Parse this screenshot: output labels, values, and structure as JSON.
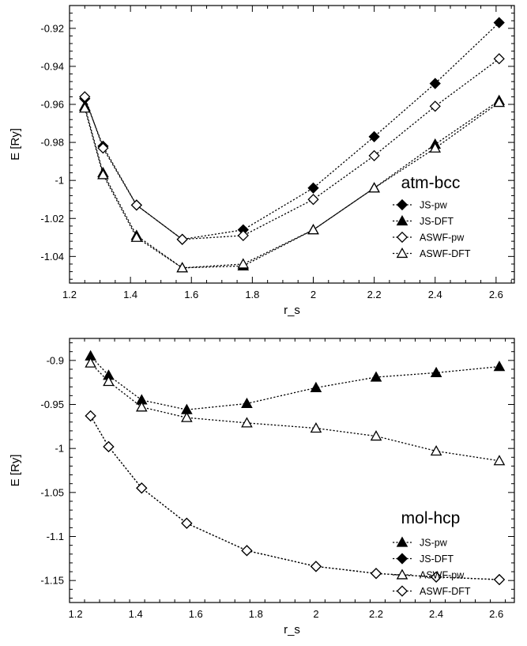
{
  "chart_data": [
    {
      "type": "line",
      "title": "atm-bcc",
      "xlabel": "r_s",
      "ylabel": "E [Ry]",
      "xlim": [
        1.2,
        2.66
      ],
      "ylim": [
        -1.054,
        -0.908
      ],
      "xticks": [
        1.2,
        1.4,
        1.6,
        1.8,
        2,
        2.2,
        2.4,
        2.6
      ],
      "xtick_labels": [
        "1.2",
        "1.4",
        "1.6",
        "1.8",
        "2",
        "2.2",
        "2.4",
        "2.6"
      ],
      "yticks": [
        -0.92,
        -0.94,
        -0.96,
        -0.98,
        -1,
        -1.02,
        -1.04
      ],
      "ytick_labels": [
        "-0.92",
        "-0.94",
        "-0.96",
        "-0.98",
        "-1",
        "-1.02",
        "-1.04"
      ],
      "legend_position": "bottom-right",
      "grid": false,
      "x": [
        1.25,
        1.31,
        1.42,
        1.57,
        1.77,
        2.0,
        2.2,
        2.4,
        2.61
      ],
      "series": [
        {
          "name": "JS-pw",
          "marker": "diamond-filled",
          "values": [
            -0.957,
            -0.982,
            -1.013,
            -1.031,
            -1.026,
            -1.004,
            -0.977,
            -0.949,
            -0.917
          ]
        },
        {
          "name": "JS-DFT",
          "marker": "triangle-filled",
          "values": [
            -0.961,
            -0.996,
            -1.029,
            -1.046,
            -1.045,
            -1.026,
            -1.004,
            -0.981,
            -0.958
          ]
        },
        {
          "name": "ASWF-pw",
          "marker": "diamond-open",
          "values": [
            -0.956,
            -0.983,
            -1.013,
            -1.031,
            -1.029,
            -1.01,
            -0.987,
            -0.961,
            -0.936
          ]
        },
        {
          "name": "ASWF-DFT",
          "marker": "triangle-open",
          "values": [
            -0.962,
            -0.997,
            -1.03,
            -1.046,
            -1.044,
            -1.026,
            -1.004,
            -0.983,
            -0.959
          ]
        }
      ]
    },
    {
      "type": "line",
      "title": "mol-hcp",
      "xlabel": "r_s",
      "ylabel": "E [Ry]",
      "xlim": [
        1.18,
        2.66
      ],
      "ylim": [
        -1.175,
        -0.875
      ],
      "xticks": [
        1.2,
        1.4,
        1.6,
        1.8,
        2,
        2.2,
        2.4,
        2.6
      ],
      "xtick_labels": [
        "1.2",
        "1.4",
        "1.6",
        "1.8",
        "2",
        "2.2",
        "2.4",
        "2.6"
      ],
      "yticks": [
        -0.9,
        -0.95,
        -1,
        -1.05,
        -1.1,
        -1.15
      ],
      "ytick_labels": [
        "-0.9",
        "-0.95",
        "-1",
        "-1.05",
        "-1.1",
        "-1.15"
      ],
      "legend_position": "bottom-right",
      "grid": false,
      "x": [
        1.25,
        1.31,
        1.42,
        1.57,
        1.77,
        2.0,
        2.2,
        2.4,
        2.61
      ],
      "series": [
        {
          "name": "JS-pw",
          "marker": "triangle-filled",
          "values": [
            -0.895,
            -0.917,
            -0.945,
            -0.956,
            -0.949,
            -0.931,
            -0.919,
            -0.914,
            -0.907
          ]
        },
        {
          "name": "JS-DFT",
          "marker": "diamond-filled",
          "values": [
            -0.963,
            -0.998,
            -1.045,
            -1.085,
            -1.116,
            -1.134,
            -1.142,
            -1.146,
            -1.149
          ]
        },
        {
          "name": "ASWF-pw",
          "marker": "triangle-open",
          "values": [
            -0.903,
            -0.924,
            -0.953,
            -0.965,
            -0.971,
            -0.977,
            -0.986,
            -1.003,
            -1.014
          ]
        },
        {
          "name": "ASWF-DFT",
          "marker": "diamond-open",
          "values": [
            -0.963,
            -0.998,
            -1.045,
            -1.085,
            -1.116,
            -1.134,
            -1.142,
            -1.146,
            -1.149
          ]
        }
      ]
    }
  ]
}
